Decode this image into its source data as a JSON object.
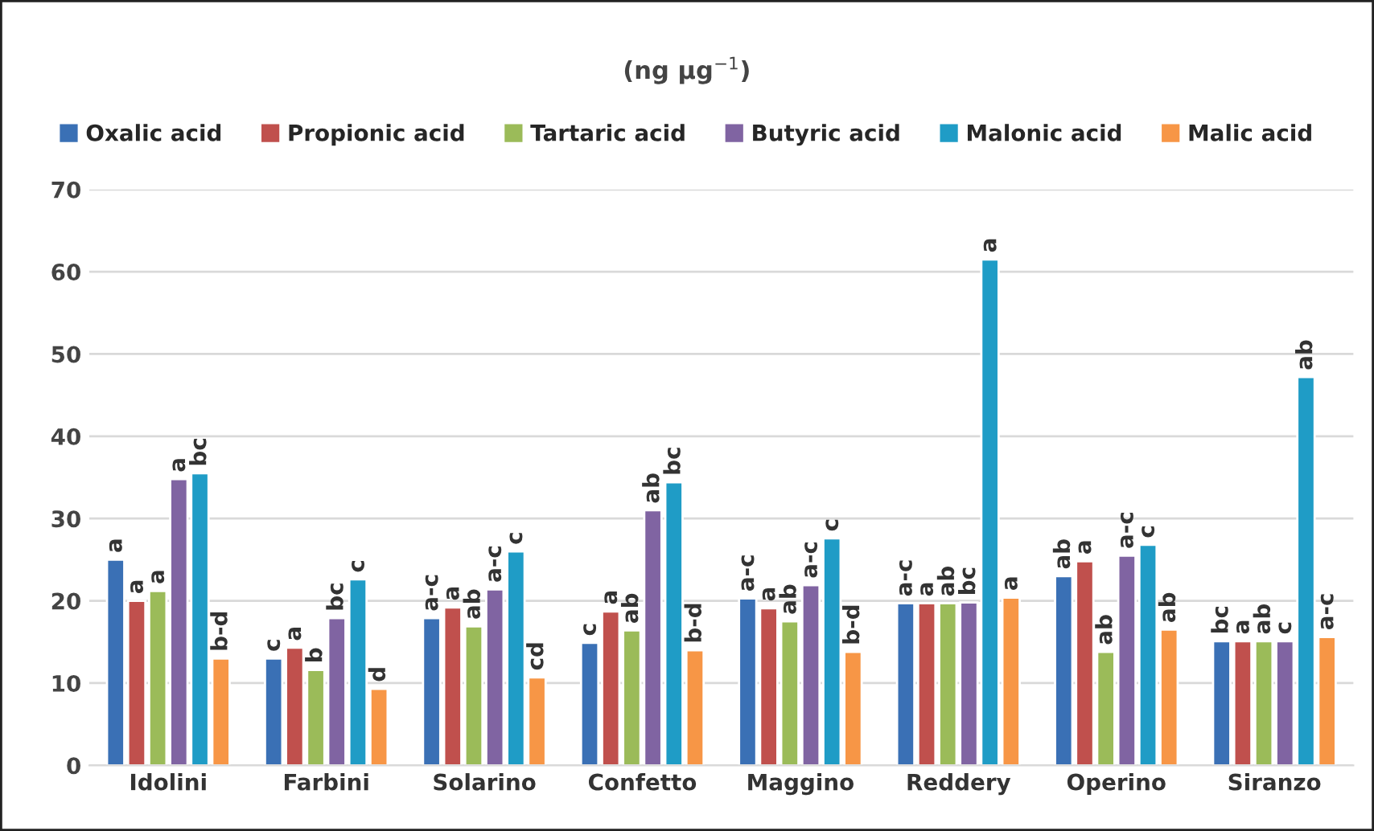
{
  "chart_data": {
    "type": "bar",
    "title": "(ng µg$^{−1}$)",
    "categories": [
      "Idolini",
      "Farbini",
      "Solarino",
      "Confetto",
      "Maggino",
      "Reddery",
      "Operino",
      "Siranzo"
    ],
    "series": [
      {
        "name": "Oxalic acid",
        "color": "#3a70b5",
        "values": [
          25,
          13,
          17.9,
          14.9,
          20.3,
          19.7,
          23,
          15.1
        ],
        "value_labels": [
          "a",
          "c",
          "a-c",
          "c",
          "a-c",
          "a-c",
          "ab",
          "bc"
        ]
      },
      {
        "name": "Propionic acid",
        "color": "#c0504d",
        "values": [
          20,
          14.3,
          19.2,
          18.7,
          19.1,
          19.7,
          24.8,
          15.1
        ],
        "value_labels": [
          "a",
          "a",
          "a",
          "a",
          "a",
          "a",
          "a",
          "a"
        ]
      },
      {
        "name": "Tartaric acid",
        "color": "#9bbb59",
        "values": [
          21.2,
          11.6,
          16.9,
          16.4,
          17.5,
          19.7,
          13.8,
          15.1
        ],
        "value_labels": [
          "a",
          "b",
          "ab",
          "ab",
          "ab",
          "ab",
          "ab",
          "ab"
        ]
      },
      {
        "name": "Butyric acid",
        "color": "#8064a2",
        "values": [
          34.8,
          17.9,
          21.4,
          31,
          21.9,
          19.8,
          25.5,
          15.1
        ],
        "value_labels": [
          "a",
          "bc",
          "a-c",
          "ab",
          "a-c",
          "bc",
          "a-c",
          "c"
        ]
      },
      {
        "name": "Malonic acid",
        "color": "#1f9cc6",
        "values": [
          35.5,
          22.6,
          26,
          34.4,
          27.6,
          61.5,
          26.8,
          47.2
        ],
        "value_labels": [
          "bc",
          "c",
          "c",
          "bc",
          "c",
          "a",
          "c",
          "ab"
        ]
      },
      {
        "name": "Malic acid",
        "color": "#f79646",
        "values": [
          13,
          9.3,
          10.7,
          14,
          13.8,
          20.4,
          16.5,
          15.6
        ],
        "value_labels": [
          "b-d",
          "d",
          "cd",
          "b-d",
          "b-d",
          "a",
          "ab",
          "a-c"
        ]
      }
    ],
    "ylim": [
      0,
      70
    ],
    "yticks": [
      0,
      10,
      20,
      30,
      40,
      50,
      60,
      70
    ],
    "grid": "y",
    "legend": "top"
  }
}
